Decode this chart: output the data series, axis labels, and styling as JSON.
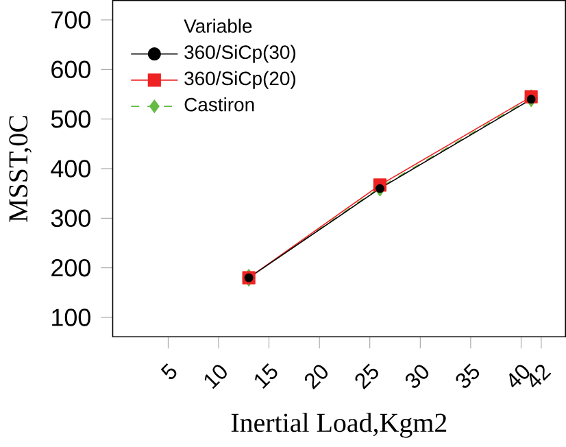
{
  "chart_data": {
    "type": "line",
    "xlabel": "Inertial Load,Kgm2",
    "ylabel": "MSST,0C",
    "legend_title": "Variable",
    "legend": "top left",
    "x": [
      13,
      26,
      41
    ],
    "series": [
      {
        "name": "360/SiCp(30)",
        "color": "#000000",
        "values": [
          180,
          360,
          540
        ],
        "marker": "circle",
        "line_style": "solid"
      },
      {
        "name": "360/SiCp(20)",
        "color": "#ee2222",
        "values": [
          180,
          367,
          545
        ],
        "marker": "square",
        "line_style": "solid"
      },
      {
        "name": "Castiron",
        "color": "#66bb44",
        "values": [
          180,
          362,
          542
        ],
        "marker": "diamond",
        "line_style": "dashed"
      }
    ],
    "xlim": [
      -0.5,
      44.4
    ],
    "ylim": [
      61,
      739
    ],
    "xticks": [
      5,
      10,
      15,
      20,
      25,
      30,
      35,
      40,
      42
    ],
    "yticks": [
      100,
      200,
      300,
      400,
      500,
      600,
      700
    ]
  }
}
